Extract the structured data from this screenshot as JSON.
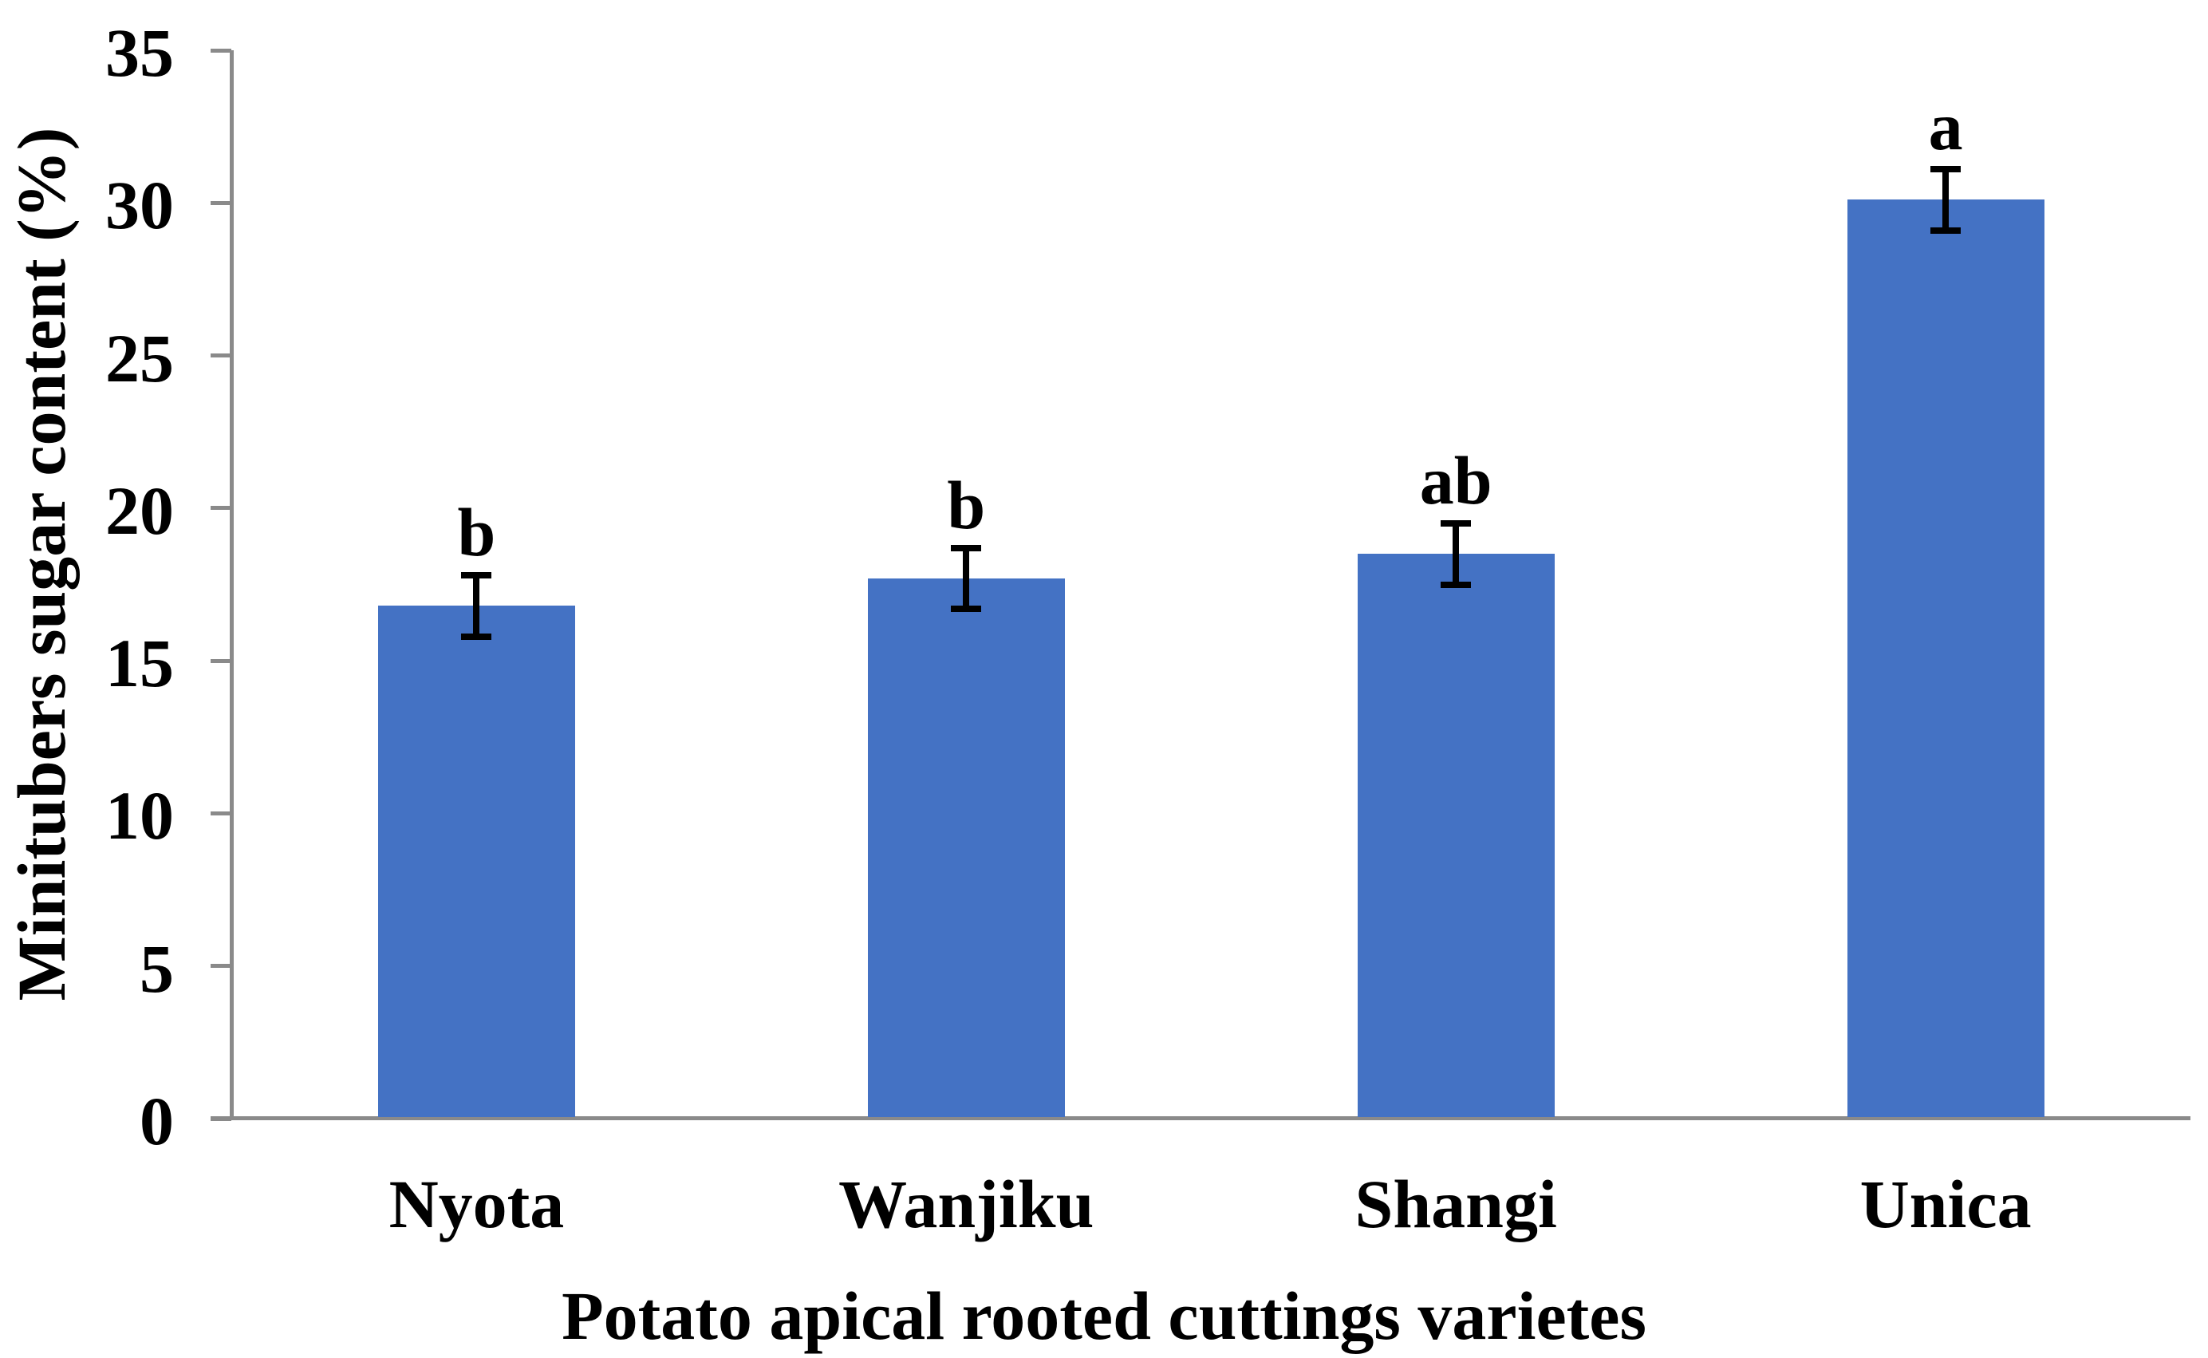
{
  "figure": {
    "background": "#FFFFFF"
  },
  "chart_data": {
    "type": "bar",
    "title": "",
    "xlabel": "Potato apical rooted cuttings varietes",
    "ylabel": "Minitubers sugar content (%)",
    "categories": [
      "Nyota",
      "Wanjiku",
      "Shangi",
      "Unica"
    ],
    "values": [
      16.8,
      17.7,
      18.5,
      30.1
    ],
    "error_bars": [
      1.0,
      1.0,
      1.0,
      1.0
    ],
    "sig_letters": [
      "b",
      "b",
      "ab",
      "a"
    ],
    "ylim": [
      0,
      35
    ],
    "yticks": [
      0,
      5,
      10,
      15,
      20,
      25,
      30,
      35
    ],
    "grid": "off",
    "legend": "none",
    "bar_color": "#4472C4",
    "axis_color": "#8A8A8A",
    "text_color": "#000000",
    "error_bar_color": "#000000"
  }
}
